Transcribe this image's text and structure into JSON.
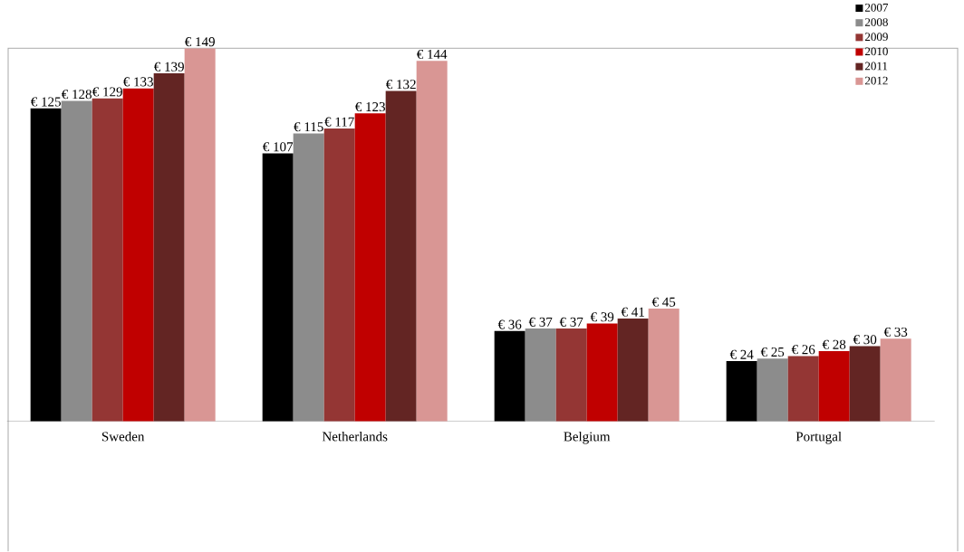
{
  "chart_data": {
    "type": "bar",
    "categories": [
      "Sweden",
      "Netherlands",
      "Belgium",
      "Portugal"
    ],
    "legend": "top right",
    "series": [
      {
        "name": "2007",
        "color": "#000000",
        "values": [
          125,
          107,
          36,
          24
        ],
        "value_labels": [
          "€ 125",
          "€ 107",
          "€ 36",
          "€ 24"
        ]
      },
      {
        "name": "2008",
        "color": "#8c8c8c",
        "values": [
          128,
          115,
          37,
          25
        ],
        "value_labels": [
          "€ 128",
          "€ 115",
          "€ 37",
          "€ 25"
        ]
      },
      {
        "name": "2009",
        "color": "#943634",
        "values": [
          129,
          117,
          37,
          26
        ],
        "value_labels": [
          "€ 129",
          "€ 117",
          "€ 37",
          "€ 26"
        ]
      },
      {
        "name": "2010",
        "color": "#c00000",
        "values": [
          133,
          123,
          39,
          28
        ],
        "value_labels": [
          "€ 133",
          "€ 123",
          "€ 39",
          "€ 28"
        ]
      },
      {
        "name": "2011",
        "color": "#632523",
        "values": [
          139,
          132,
          41,
          30
        ],
        "value_labels": [
          "€ 139",
          "€ 132",
          "€ 41",
          "€ 30"
        ]
      },
      {
        "name": "2012",
        "color": "#d99694",
        "values": [
          149,
          144,
          45,
          33
        ],
        "value_labels": [
          "€ 149",
          "€ 144",
          "€ 45",
          "€ 33"
        ]
      }
    ]
  }
}
